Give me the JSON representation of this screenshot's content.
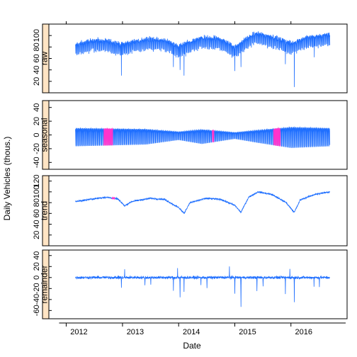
{
  "colors": {
    "line": "#1f6fff",
    "highlight": "#ff33cc",
    "strip_fill": "#ffe4c4",
    "frame": "#000000"
  },
  "chart_data": {
    "type": "line",
    "title": "",
    "xlabel": "Date",
    "ylabel": "Daily Vehicles (thous.)",
    "x_range": [
      "2011-09-15",
      "2016-12-31"
    ],
    "x_ticks": [
      "2012-01-01",
      "2013-01-01",
      "2014-01-01",
      "2015-01-01",
      "2016-01-01"
    ],
    "x_tick_labels": [
      "2012",
      "2013",
      "2014",
      "2015",
      "2016"
    ],
    "data_start": "2012-03-01",
    "data_end": "2016-09-10",
    "panels": [
      {
        "name": "raw",
        "ylim": [
          0,
          120
        ],
        "y_ticks": [
          20,
          40,
          60,
          80,
          100
        ],
        "y_tick_labels": [
          "20",
          "40",
          "60",
          "80",
          "100"
        ],
        "knots": [
          [
            "2012-03-01",
            78
          ],
          [
            "2012-07-01",
            86
          ],
          [
            "2012-10-01",
            84
          ],
          [
            "2013-01-01",
            78
          ],
          [
            "2013-03-15",
            84
          ],
          [
            "2013-07-01",
            88
          ],
          [
            "2013-10-01",
            86
          ],
          [
            "2014-01-01",
            75
          ],
          [
            "2014-02-15",
            80
          ],
          [
            "2014-06-01",
            90
          ],
          [
            "2014-10-01",
            88
          ],
          [
            "2015-01-01",
            74
          ],
          [
            "2015-03-15",
            88
          ],
          [
            "2015-05-15",
            98
          ],
          [
            "2015-09-01",
            92
          ],
          [
            "2016-01-01",
            80
          ],
          [
            "2016-04-01",
            90
          ],
          [
            "2016-09-10",
            96
          ]
        ],
        "dips": [
          [
            "2012-12-25",
            30
          ],
          [
            "2013-11-28",
            45
          ],
          [
            "2014-01-10",
            40
          ],
          [
            "2014-02-05",
            30
          ],
          [
            "2015-01-01",
            38
          ],
          [
            "2015-02-10",
            45
          ],
          [
            "2015-11-26",
            50
          ],
          [
            "2016-01-23",
            10
          ],
          [
            "2016-06-01",
            62
          ]
        ],
        "weekly_amplitude": 14,
        "noise": 4
      },
      {
        "name": "seasonal",
        "ylim": [
          -50,
          50
        ],
        "y_ticks": [
          -40,
          -20,
          0,
          20,
          40
        ],
        "y_tick_labels": [
          "-40",
          "-20",
          "0",
          "20",
          "40"
        ],
        "weekly_amplitude": 10,
        "envelope": [
          [
            "2012-03-01",
            1.0
          ],
          [
            "2013-06-01",
            0.85
          ],
          [
            "2014-01-01",
            0.45
          ],
          [
            "2014-06-01",
            0.8
          ],
          [
            "2015-01-01",
            0.35
          ],
          [
            "2015-06-01",
            0.7
          ],
          [
            "2016-01-01",
            1.15
          ],
          [
            "2016-09-10",
            1.0
          ]
        ],
        "highlight_spans": [
          [
            "2012-09-01",
            "2012-11-01"
          ],
          [
            "2014-08-05",
            "2014-08-20"
          ],
          [
            "2015-09-10",
            "2015-10-25"
          ]
        ]
      },
      {
        "name": "trend",
        "ylim": [
          0,
          130
        ],
        "y_ticks": [
          20,
          40,
          60,
          80,
          100,
          120
        ],
        "y_tick_labels": [
          "20",
          "40",
          "60",
          "80",
          "100",
          "120"
        ],
        "knots": [
          [
            "2012-03-01",
            82
          ],
          [
            "2012-06-01",
            86
          ],
          [
            "2012-09-15",
            90
          ],
          [
            "2012-12-01",
            87
          ],
          [
            "2013-01-15",
            74
          ],
          [
            "2013-03-01",
            82
          ],
          [
            "2013-07-01",
            88
          ],
          [
            "2013-10-01",
            86
          ],
          [
            "2014-01-05",
            70
          ],
          [
            "2014-02-05",
            60
          ],
          [
            "2014-03-15",
            80
          ],
          [
            "2014-07-01",
            88
          ],
          [
            "2014-10-01",
            86
          ],
          [
            "2015-01-01",
            75
          ],
          [
            "2015-02-10",
            62
          ],
          [
            "2015-04-01",
            90
          ],
          [
            "2015-06-01",
            100
          ],
          [
            "2015-09-01",
            95
          ],
          [
            "2015-12-01",
            80
          ],
          [
            "2016-01-23",
            62
          ],
          [
            "2016-03-01",
            85
          ],
          [
            "2016-06-01",
            95
          ],
          [
            "2016-09-10",
            100
          ]
        ],
        "highlight_span": [
          "2012-10-25",
          "2012-11-12"
        ],
        "noise": 1.5
      },
      {
        "name": "remainder",
        "ylim": [
          -75,
          50
        ],
        "y_ticks": [
          -60,
          -40,
          -20,
          0,
          20,
          40
        ],
        "y_tick_labels": [
          "-60",
          "-40",
          "-20",
          "0",
          "20",
          "40"
        ],
        "noise": 2.5,
        "spikes": [
          [
            "2012-12-25",
            -18
          ],
          [
            "2013-01-15",
            15
          ],
          [
            "2013-05-27",
            -15
          ],
          [
            "2013-07-04",
            -12
          ],
          [
            "2013-11-28",
            -25
          ],
          [
            "2013-12-25",
            16
          ],
          [
            "2014-01-10",
            -35
          ],
          [
            "2014-02-05",
            -25
          ],
          [
            "2014-05-26",
            -15
          ],
          [
            "2014-07-04",
            -20
          ],
          [
            "2014-11-27",
            20
          ],
          [
            "2015-01-01",
            -28
          ],
          [
            "2015-02-10",
            -52
          ],
          [
            "2015-05-25",
            -22
          ],
          [
            "2015-07-04",
            -18
          ],
          [
            "2015-11-26",
            -30
          ],
          [
            "2015-12-25",
            15
          ],
          [
            "2016-01-23",
            -45
          ],
          [
            "2016-05-30",
            -15
          ],
          [
            "2016-07-04",
            -18
          ]
        ]
      }
    ]
  }
}
